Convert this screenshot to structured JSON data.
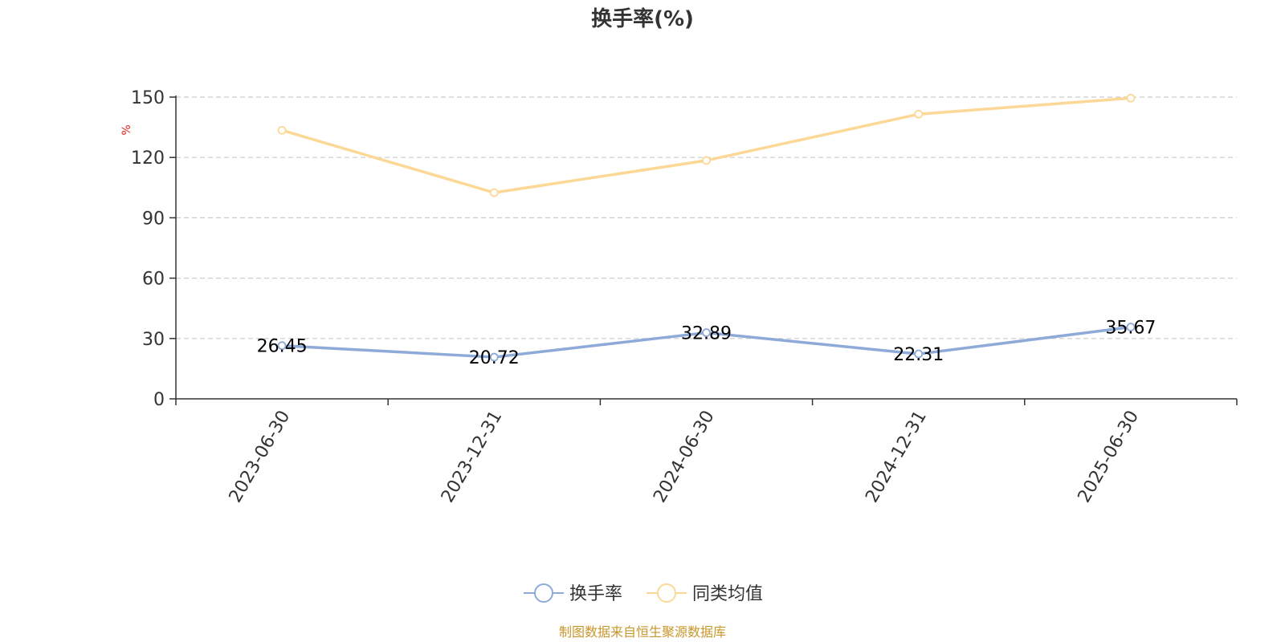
{
  "chart_data": {
    "type": "line",
    "title": "换手率(%)",
    "ylabel": "%",
    "ylim": [
      0,
      150
    ],
    "yticks": [
      0,
      30,
      60,
      90,
      120,
      150
    ],
    "categories": [
      "2023-06-30",
      "2023-12-31",
      "2024-06-30",
      "2024-12-31",
      "2025-06-30"
    ],
    "grid": true,
    "legend_position": "bottom-center",
    "series": [
      {
        "name": "换手率",
        "values": [
          26.45,
          20.72,
          32.89,
          22.31,
          35.67
        ],
        "color": "#8eaad8",
        "show_labels": true
      },
      {
        "name": "同类均值",
        "values": [
          133.5,
          102.5,
          118.5,
          141.5,
          149.5
        ],
        "color": "#fcd896",
        "show_labels": false
      }
    ]
  },
  "footer": {
    "source": "制图数据来自恒生聚源数据库",
    "source_color": "#c8962a"
  },
  "colors": {
    "unit_label": "#e02020",
    "axis": "#333333",
    "grid": "#cccccc"
  }
}
